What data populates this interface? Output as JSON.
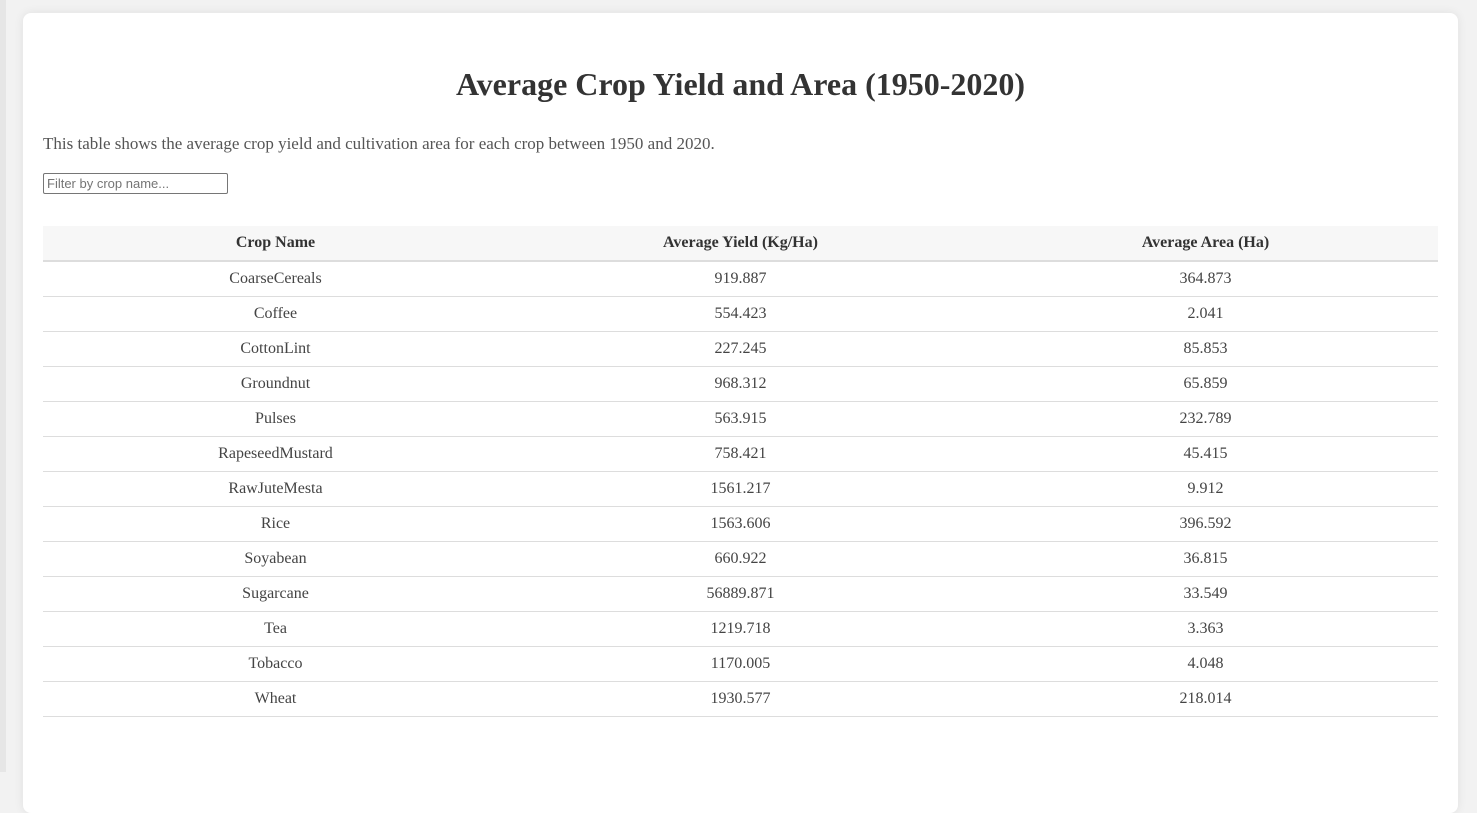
{
  "page": {
    "title": "Average Crop Yield and Area (1950-2020)",
    "description": "This table shows the average crop yield and cultivation area for each crop between 1950 and 2020."
  },
  "filter": {
    "placeholder": "Filter by crop name...",
    "value": ""
  },
  "table": {
    "headers": {
      "crop_name": "Crop Name",
      "average_yield": "Average Yield (Kg/Ha)",
      "average_area": "Average Area (Ha)"
    },
    "rows": [
      {
        "crop": "CoarseCereals",
        "yield": "919.887",
        "area": "364.873"
      },
      {
        "crop": "Coffee",
        "yield": "554.423",
        "area": "2.041"
      },
      {
        "crop": "CottonLint",
        "yield": "227.245",
        "area": "85.853"
      },
      {
        "crop": "Groundnut",
        "yield": "968.312",
        "area": "65.859"
      },
      {
        "crop": "Pulses",
        "yield": "563.915",
        "area": "232.789"
      },
      {
        "crop": "RapeseedMustard",
        "yield": "758.421",
        "area": "45.415"
      },
      {
        "crop": "RawJuteMesta",
        "yield": "1561.217",
        "area": "9.912"
      },
      {
        "crop": "Rice",
        "yield": "1563.606",
        "area": "396.592"
      },
      {
        "crop": "Soyabean",
        "yield": "660.922",
        "area": "36.815"
      },
      {
        "crop": "Sugarcane",
        "yield": "56889.871",
        "area": "33.549"
      },
      {
        "crop": "Tea",
        "yield": "1219.718",
        "area": "3.363"
      },
      {
        "crop": "Tobacco",
        "yield": "1170.005",
        "area": "4.048"
      },
      {
        "crop": "Wheat",
        "yield": "1930.577",
        "area": "218.014"
      }
    ]
  },
  "colors": {
    "background": "#f2f2f2",
    "card": "#ffffff",
    "header_row": "#f7f7f7",
    "row_border": "#dddddd",
    "text": "#333333"
  }
}
